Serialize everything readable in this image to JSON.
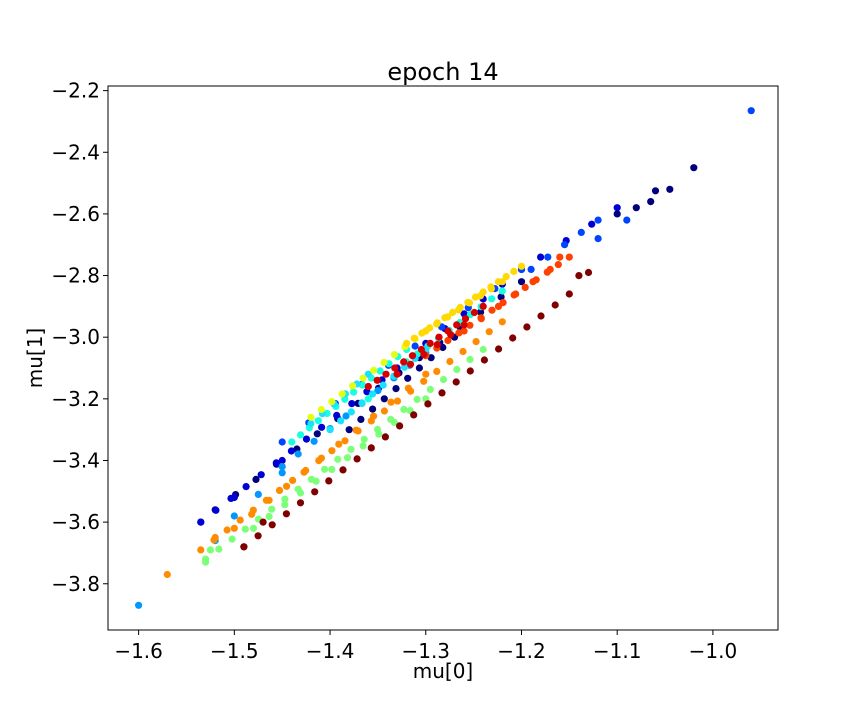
{
  "chart_data": {
    "type": "scatter",
    "title": "epoch 14",
    "xlabel": "mu[0]",
    "ylabel": "mu[1]",
    "xlim": [
      -1.632,
      -0.932
    ],
    "ylim": [
      -3.95,
      -2.185
    ],
    "grid": false,
    "legend": "none",
    "x_ticks": [
      -1.6,
      -1.5,
      -1.4,
      -1.3,
      -1.2,
      -1.1,
      -1.0
    ],
    "x_tick_labels": [
      "−1.6",
      "−1.5",
      "−1.4",
      "−1.3",
      "−1.2",
      "−1.1",
      "−1.0"
    ],
    "y_ticks": [
      -3.8,
      -3.6,
      -3.4,
      -3.2,
      -3.0,
      -2.8,
      -2.6,
      -2.4,
      -2.2
    ],
    "y_tick_labels": [
      "−3.8",
      "−3.6",
      "−3.4",
      "−3.2",
      "−3.0",
      "−2.8",
      "−2.6",
      "−2.4",
      "−2.2"
    ],
    "colormap": "jet",
    "series": [
      {
        "color": "#00007f",
        "segments": [
          [
            -1.52,
            -3.56,
            -1.2,
            -2.82,
            16
          ],
          [
            -1.38,
            -3.3,
            -1.27,
            -3.0,
            10
          ],
          [
            -1.1,
            -2.6,
            -1.02,
            -2.45,
            3
          ]
        ],
        "points": [
          [
            -1.045,
            -2.52
          ],
          [
            -1.065,
            -2.56
          ],
          [
            -1.08,
            -2.58
          ]
        ]
      },
      {
        "color": "#0000d5",
        "segments": [
          [
            -1.535,
            -3.6,
            -1.33,
            -3.1,
            14
          ],
          [
            -1.3,
            -3.02,
            -1.2,
            -2.78,
            6
          ],
          [
            -1.18,
            -2.74,
            -1.1,
            -2.58,
            4
          ]
        ],
        "points": [
          [
            -1.5,
            -3.52
          ],
          [
            -1.535,
            -3.6
          ],
          [
            -1.45,
            -3.4
          ]
        ]
      },
      {
        "color": "#0044ff",
        "segments": [
          [
            -1.45,
            -3.34,
            -1.2,
            -2.78,
            10
          ],
          [
            -1.19,
            -2.78,
            -1.12,
            -2.62,
            5
          ]
        ],
        "points": [
          [
            -0.96,
            -2.265
          ],
          [
            -1.09,
            -2.62
          ],
          [
            -1.12,
            -2.68
          ]
        ]
      },
      {
        "color": "#0098ff",
        "segments": [
          [
            -1.45,
            -3.42,
            -1.3,
            -3.05,
            10
          ],
          [
            -1.5,
            -3.58,
            -1.45,
            -3.44,
            3
          ]
        ],
        "points": [
          [
            -1.6,
            -3.87
          ],
          [
            -1.52,
            -3.66
          ]
        ]
      },
      {
        "color": "#16ffe1",
        "segments": [
          [
            -1.44,
            -3.34,
            -1.32,
            -3.04,
            14
          ],
          [
            -1.32,
            -3.08,
            -1.22,
            -2.85,
            10
          ]
        ],
        "points": [
          [
            -1.36,
            -3.2
          ]
        ]
      },
      {
        "color": "#1ce0ff",
        "segments": [
          [
            -1.4,
            -3.3,
            -1.3,
            -3.04,
            10
          ],
          [
            -1.42,
            -3.28,
            -1.36,
            -3.12,
            6
          ]
        ],
        "points": []
      },
      {
        "color": "#7dff7a",
        "segments": [
          [
            -1.53,
            -3.72,
            -1.24,
            -3.04,
            22
          ],
          [
            -1.48,
            -3.62,
            -1.3,
            -3.2,
            12
          ]
        ],
        "points": [
          [
            -1.525,
            -3.69
          ],
          [
            -1.53,
            -3.73
          ]
        ]
      },
      {
        "color": "#e4ff13",
        "segments": [
          [
            -1.42,
            -3.26,
            -1.3,
            -2.98,
            12
          ]
        ],
        "points": []
      },
      {
        "color": "#ffd900",
        "segments": [
          [
            -1.32,
            -3.02,
            -1.2,
            -2.77,
            16
          ],
          [
            -1.3,
            -2.98,
            -1.22,
            -2.82,
            8
          ]
        ],
        "points": []
      },
      {
        "color": "#ff8c00",
        "segments": [
          [
            -1.535,
            -3.69,
            -1.22,
            -2.95,
            24
          ],
          [
            -1.5,
            -3.62,
            -1.3,
            -3.12,
            12
          ]
        ],
        "points": [
          [
            -1.57,
            -3.77
          ],
          [
            -1.52,
            -3.65
          ]
        ]
      },
      {
        "color": "#ff4100",
        "segments": [
          [
            -1.3,
            -3.06,
            -1.15,
            -2.74,
            14
          ],
          [
            -1.26,
            -2.98,
            -1.17,
            -2.78,
            6
          ]
        ],
        "points": [
          [
            -1.16,
            -2.74
          ]
        ]
      },
      {
        "color": "#d50000",
        "segments": [
          [
            -1.36,
            -3.16,
            -1.24,
            -2.9,
            14
          ],
          [
            -1.33,
            -3.12,
            -1.26,
            -2.96,
            6
          ]
        ],
        "points": []
      },
      {
        "color": "#7f0000",
        "segments": [
          [
            -1.49,
            -3.68,
            -1.15,
            -2.86,
            24
          ],
          [
            -1.14,
            -2.8,
            -1.13,
            -2.79,
            2
          ]
        ],
        "points": [
          [
            -1.49,
            -3.68
          ],
          [
            -1.47,
            -3.6
          ]
        ]
      }
    ]
  }
}
